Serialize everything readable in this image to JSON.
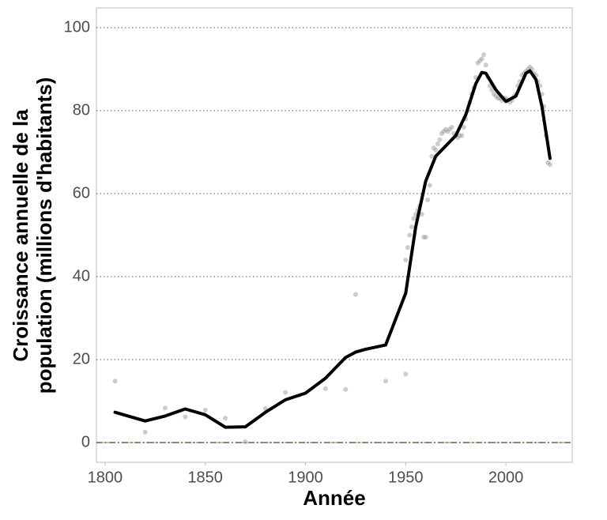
{
  "chart_data": {
    "type": "scatter",
    "xlabel": "Année",
    "ylabel": [
      "Croissance annuelle de la",
      "population (millions d'habitants)"
    ],
    "xlim": [
      1795.7,
      2033.1
    ],
    "ylim": [
      -4.76,
      104.76
    ],
    "xticks": [
      1800,
      1850,
      1900,
      1950,
      2000
    ],
    "yticks": [
      0,
      20,
      40,
      60,
      80,
      100
    ],
    "grid": true,
    "grid_style": "dotted",
    "grid_color": "#555555",
    "reference_line": {
      "y": 0,
      "color": "#5a3a1a"
    },
    "points": {
      "color": "#999999",
      "x": [
        1805,
        1820,
        1830,
        1840,
        1850,
        1860,
        1870,
        1880,
        1890,
        1910,
        1920,
        1925,
        1940,
        1950,
        1950,
        1951,
        1952,
        1953,
        1954,
        1955,
        1956,
        1957,
        1958,
        1959,
        1960,
        1961,
        1962,
        1963,
        1964,
        1965,
        1966,
        1967,
        1968,
        1969,
        1970,
        1971,
        1972,
        1973,
        1974,
        1975,
        1976,
        1977,
        1978,
        1979,
        1980,
        1981,
        1982,
        1983,
        1984,
        1985,
        1986,
        1987,
        1988,
        1989,
        1990,
        1991,
        1992,
        1993,
        1994,
        1995,
        1996,
        1997,
        1998,
        1999,
        2000,
        2001,
        2002,
        2003,
        2004,
        2005,
        2006,
        2007,
        2008,
        2009,
        2010,
        2011,
        2012,
        2013,
        2014,
        2015,
        2016,
        2017,
        2018,
        2019,
        2020,
        2021,
        2022
      ],
      "values": [
        14.8,
        2.5,
        8.3,
        6.2,
        7.8,
        5.9,
        0.2,
        8.2,
        12.1,
        13.0,
        12.8,
        35.7,
        14.8,
        16.5,
        44,
        47,
        50,
        52,
        54,
        55,
        56,
        57,
        55,
        49.5,
        49.5,
        58.5,
        62,
        69,
        71,
        70.5,
        72,
        73,
        74.5,
        75,
        75.5,
        75,
        75.5,
        76,
        74.5,
        74,
        73.5,
        74,
        74,
        76,
        78,
        80,
        82,
        84,
        85.5,
        88,
        91.5,
        92,
        92.5,
        93.5,
        91,
        88,
        86,
        85,
        84,
        83.5,
        83,
        83,
        82.5,
        83,
        83,
        82.5,
        82,
        82.5,
        83.5,
        84,
        86,
        87,
        88.5,
        89,
        89.5,
        90,
        90.5,
        90,
        89,
        88.5,
        87,
        86,
        84,
        81,
        74,
        67.5,
        67
      ]
    },
    "trend": {
      "color": "#000000",
      "x": [
        1805,
        1820,
        1830,
        1840,
        1850,
        1860,
        1870,
        1880,
        1890,
        1900,
        1910,
        1920,
        1925,
        1930,
        1940,
        1950,
        1955,
        1960,
        1965,
        1970,
        1975,
        1980,
        1985,
        1988,
        1990,
        1995,
        2000,
        2005,
        2010,
        2012,
        2015,
        2018,
        2022
      ],
      "values": [
        7.3,
        5.2,
        6.4,
        8.1,
        6.7,
        3.7,
        3.8,
        7.3,
        10.3,
        11.9,
        15.5,
        20.5,
        21.8,
        22.5,
        23.5,
        36,
        52,
        63,
        69,
        71.5,
        74,
        79,
        86.5,
        89.2,
        89,
        85,
        82.2,
        83.5,
        89,
        89.6,
        87.5,
        81,
        68.5
      ]
    }
  }
}
